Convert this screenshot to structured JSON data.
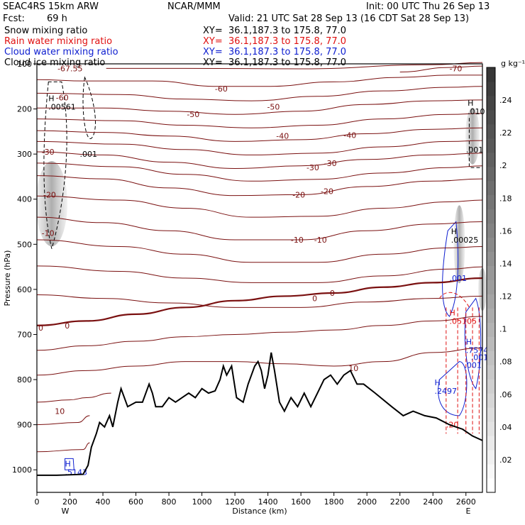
{
  "header": {
    "model": "SEAC4RS 15km ARW",
    "org": "NCAR/MMM",
    "init": "Init: 00 UTC Thu 26 Sep 13",
    "fcst_label": "Fcst:",
    "fcst_value": "69 h",
    "valid": "Valid: 21 UTC Sat 28 Sep 13 (16 CDT Sat 28 Sep 13)"
  },
  "fields": [
    {
      "name": "Snow mixing ratio",
      "xy": "XY=  36.1,187.3 to 175.8, 77.0",
      "color": "#000000"
    },
    {
      "name": "Rain water mixing ratio",
      "xy": "XY=  36.1,187.3 to 175.8, 77.0",
      "color": "#e01010"
    },
    {
      "name": "Cloud water mixing ratio",
      "xy": "XY=  36.1,187.3 to 175.8, 77.0",
      "color": "#1020d0"
    },
    {
      "name": "Cloud ice mixing ratio",
      "xy": "XY=  36.1,187.3 to 175.8, 77.0",
      "color": "#000000"
    }
  ],
  "chart_data": {
    "type": "cross-section",
    "xlabel": "Distance (km)",
    "ylabel": "Pressure (hPa)",
    "xlim": [
      0,
      2700
    ],
    "ylim": [
      1050,
      100
    ],
    "x_ticks": [
      0,
      200,
      400,
      600,
      800,
      1000,
      1200,
      1400,
      1600,
      1800,
      2000,
      2200,
      2400,
      2600
    ],
    "y_ticks": [
      1000,
      900,
      800,
      700,
      600,
      500,
      400,
      300,
      200,
      100
    ],
    "end_labels": {
      "left": "W",
      "right": "E"
    },
    "colorbar": {
      "unit": "g kg⁻¹",
      "ticks": [
        ".02",
        ".04",
        ".06",
        ".08",
        ".1",
        ".12",
        ".14",
        ".16",
        ".18",
        ".2",
        ".22",
        ".24"
      ],
      "values": [
        0.02,
        0.04,
        0.06,
        0.08,
        0.1,
        0.12,
        0.14,
        0.16,
        0.18,
        0.2,
        0.22,
        0.24
      ]
    },
    "terrain": [
      [
        0,
        1012
      ],
      [
        120,
        1012
      ],
      [
        280,
        1010
      ],
      [
        310,
        990
      ],
      [
        330,
        950
      ],
      [
        360,
        920
      ],
      [
        380,
        895
      ],
      [
        410,
        905
      ],
      [
        440,
        880
      ],
      [
        460,
        905
      ],
      [
        490,
        850
      ],
      [
        510,
        820
      ],
      [
        550,
        860
      ],
      [
        600,
        850
      ],
      [
        640,
        850
      ],
      [
        680,
        810
      ],
      [
        700,
        830
      ],
      [
        720,
        860
      ],
      [
        760,
        860
      ],
      [
        800,
        840
      ],
      [
        840,
        850
      ],
      [
        880,
        840
      ],
      [
        920,
        830
      ],
      [
        960,
        840
      ],
      [
        1000,
        820
      ],
      [
        1040,
        830
      ],
      [
        1080,
        825
      ],
      [
        1110,
        800
      ],
      [
        1130,
        770
      ],
      [
        1150,
        790
      ],
      [
        1180,
        770
      ],
      [
        1210,
        840
      ],
      [
        1250,
        850
      ],
      [
        1280,
        810
      ],
      [
        1300,
        790
      ],
      [
        1320,
        770
      ],
      [
        1340,
        760
      ],
      [
        1360,
        780
      ],
      [
        1380,
        820
      ],
      [
        1400,
        790
      ],
      [
        1420,
        740
      ],
      [
        1440,
        780
      ],
      [
        1470,
        850
      ],
      [
        1500,
        870
      ],
      [
        1540,
        840
      ],
      [
        1580,
        860
      ],
      [
        1620,
        830
      ],
      [
        1660,
        860
      ],
      [
        1700,
        830
      ],
      [
        1740,
        800
      ],
      [
        1780,
        790
      ],
      [
        1820,
        810
      ],
      [
        1860,
        790
      ],
      [
        1900,
        780
      ],
      [
        1940,
        810
      ],
      [
        1980,
        810
      ],
      [
        2050,
        830
      ],
      [
        2150,
        860
      ],
      [
        2220,
        880
      ],
      [
        2280,
        870
      ],
      [
        2350,
        880
      ],
      [
        2420,
        885
      ],
      [
        2500,
        900
      ],
      [
        2580,
        910
      ],
      [
        2640,
        925
      ],
      [
        2700,
        935
      ]
    ],
    "isotherms": [
      {
        "label": "-67.55",
        "points": [
          [
            420,
            110
          ],
          [
            900,
            110
          ],
          [
            1600,
            111
          ],
          [
            2400,
            102
          ],
          [
            2700,
            97
          ]
        ],
        "label_at": [
          125,
          110
        ],
        "thick": false
      },
      {
        "label": "-70",
        "points": [
          [
            2200,
            118
          ],
          [
            2500,
            108
          ],
          [
            2700,
            105
          ]
        ],
        "label_at": [
          2500,
          110
        ],
        "thick": false
      },
      {
        "label": "-60",
        "points": [
          [
            0,
            135
          ],
          [
            300,
            138
          ],
          [
            700,
            138
          ],
          [
            1100,
            150
          ],
          [
            1400,
            150
          ],
          [
            1800,
            140
          ],
          [
            2200,
            130
          ],
          [
            2500,
            125
          ],
          [
            2700,
            125
          ]
        ],
        "label_at": [
          115,
          175
        ],
        "thick": false
      },
      {
        "label": "-50",
        "points": [
          [
            0,
            198
          ],
          [
            400,
            198
          ],
          [
            800,
            205
          ],
          [
            1200,
            212
          ],
          [
            1600,
            205
          ],
          [
            2000,
            190
          ],
          [
            2400,
            182
          ],
          [
            2700,
            180
          ]
        ],
        "label_at": [
          1395,
          195
        ],
        "thick": false
      },
      {
        "label": "-40",
        "points": [
          [
            0,
            248
          ],
          [
            400,
            252
          ],
          [
            800,
            260
          ],
          [
            1200,
            272
          ],
          [
            1600,
            268
          ],
          [
            2000,
            255
          ],
          [
            2400,
            245
          ],
          [
            2700,
            242
          ]
        ],
        "label_at": [
          1450,
          260
        ],
        "thick": false
      },
      {
        "label": "-30",
        "points": [
          [
            0,
            295
          ],
          [
            400,
            302
          ],
          [
            800,
            318
          ],
          [
            1200,
            332
          ],
          [
            1600,
            326
          ],
          [
            2000,
            312
          ],
          [
            2400,
            302
          ],
          [
            2700,
            298
          ]
        ],
        "label_at": [
          1740,
          320
        ],
        "thick": false
      },
      {
        "label": "-20",
        "points": [
          [
            0,
            348
          ],
          [
            400,
            355
          ],
          [
            800,
            375
          ],
          [
            1200,
            392
          ],
          [
            1600,
            390
          ],
          [
            2000,
            372
          ],
          [
            2400,
            360
          ],
          [
            2700,
            355
          ]
        ],
        "label_at": [
          1720,
          382
        ],
        "thick": false
      },
      {
        "label": "-10",
        "points": [
          [
            0,
            440
          ],
          [
            400,
            452
          ],
          [
            800,
            470
          ],
          [
            1200,
            490
          ],
          [
            1600,
            490
          ],
          [
            2000,
            470
          ],
          [
            2400,
            455
          ],
          [
            2700,
            450
          ]
        ],
        "label_at": [
          1680,
          490
        ],
        "thick": false
      },
      {
        "label": "0",
        "points": [
          [
            0,
            680
          ],
          [
            300,
            670
          ],
          [
            600,
            655
          ],
          [
            900,
            640
          ],
          [
            1200,
            625
          ],
          [
            1500,
            615
          ],
          [
            1800,
            608
          ],
          [
            2100,
            595
          ],
          [
            2400,
            585
          ],
          [
            2700,
            575
          ]
        ],
        "label_at": [
          1775,
          608
        ],
        "thick": true
      }
    ],
    "isotherm_labels_extra": [
      {
        "label": "-60",
        "at": [
          1070,
          155
        ]
      },
      {
        "label": "-50",
        "at": [
          900,
          212
        ]
      },
      {
        "label": "-40",
        "at": [
          1850,
          258
        ]
      },
      {
        "label": "-30",
        "at": [
          1625,
          330
        ]
      },
      {
        "label": "-30",
        "at": [
          20,
          295
        ]
      },
      {
        "label": "-20",
        "at": [
          1540,
          390
        ]
      },
      {
        "label": "-20",
        "at": [
          30,
          390
        ]
      },
      {
        "label": "-10",
        "at": [
          1530,
          490
        ]
      },
      {
        "label": "-10",
        "at": [
          20,
          475
        ]
      },
      {
        "label": "0",
        "at": [
          0,
          685
        ]
      },
      {
        "label": "0",
        "at": [
          1660,
          620
        ]
      },
      {
        "label": "0",
        "at": [
          160,
          680
        ]
      },
      {
        "label": "10",
        "at": [
          1880,
          775
        ]
      },
      {
        "label": "10",
        "at": [
          100,
          870
        ]
      }
    ],
    "maxima_labels": [
      {
        "text": "H",
        "value": ".00561",
        "at": [
          70,
          195
        ],
        "color": "#000000"
      },
      {
        "text": "",
        "value": ".001",
        "at": [
          260,
          300
        ],
        "color": "#000000"
      },
      {
        "text": "H",
        "value": ".010",
        "at": [
          2610,
          205
        ],
        "color": "#000000"
      },
      {
        "text": "",
        "value": ".001",
        "at": [
          2600,
          290
        ],
        "color": "#000000"
      },
      {
        "text": "H",
        "value": ".00025",
        "at": [
          2510,
          490
        ],
        "color": "#000000"
      },
      {
        "text": "",
        "value": ".001",
        "at": [
          2500,
          575
        ],
        "color": "#1020d0"
      },
      {
        "text": "H",
        "value": ".05105",
        "at": [
          2500,
          670
        ],
        "color": "#e01010"
      },
      {
        "text": "H",
        "value": ".7574",
        "at": [
          2600,
          735
        ],
        "color": "#1020d0"
      },
      {
        "text": "",
        "value": ".001",
        "at": [
          2590,
          768
        ],
        "color": "#1020d0"
      },
      {
        "text": "H",
        "value": ".2497",
        "at": [
          2410,
          825
        ],
        "color": "#1020d0"
      },
      {
        "text": "H",
        "value": ".5143",
        "at": [
          170,
          1005
        ],
        "color": "#1020d0"
      },
      {
        "text": "",
        "value": ".001",
        "at": [
          2630,
          750
        ],
        "color": "#1020d0"
      },
      {
        "text": "",
        "value": ".20",
        "at": [
          2480,
          900
        ],
        "color": "#e01010"
      }
    ]
  }
}
